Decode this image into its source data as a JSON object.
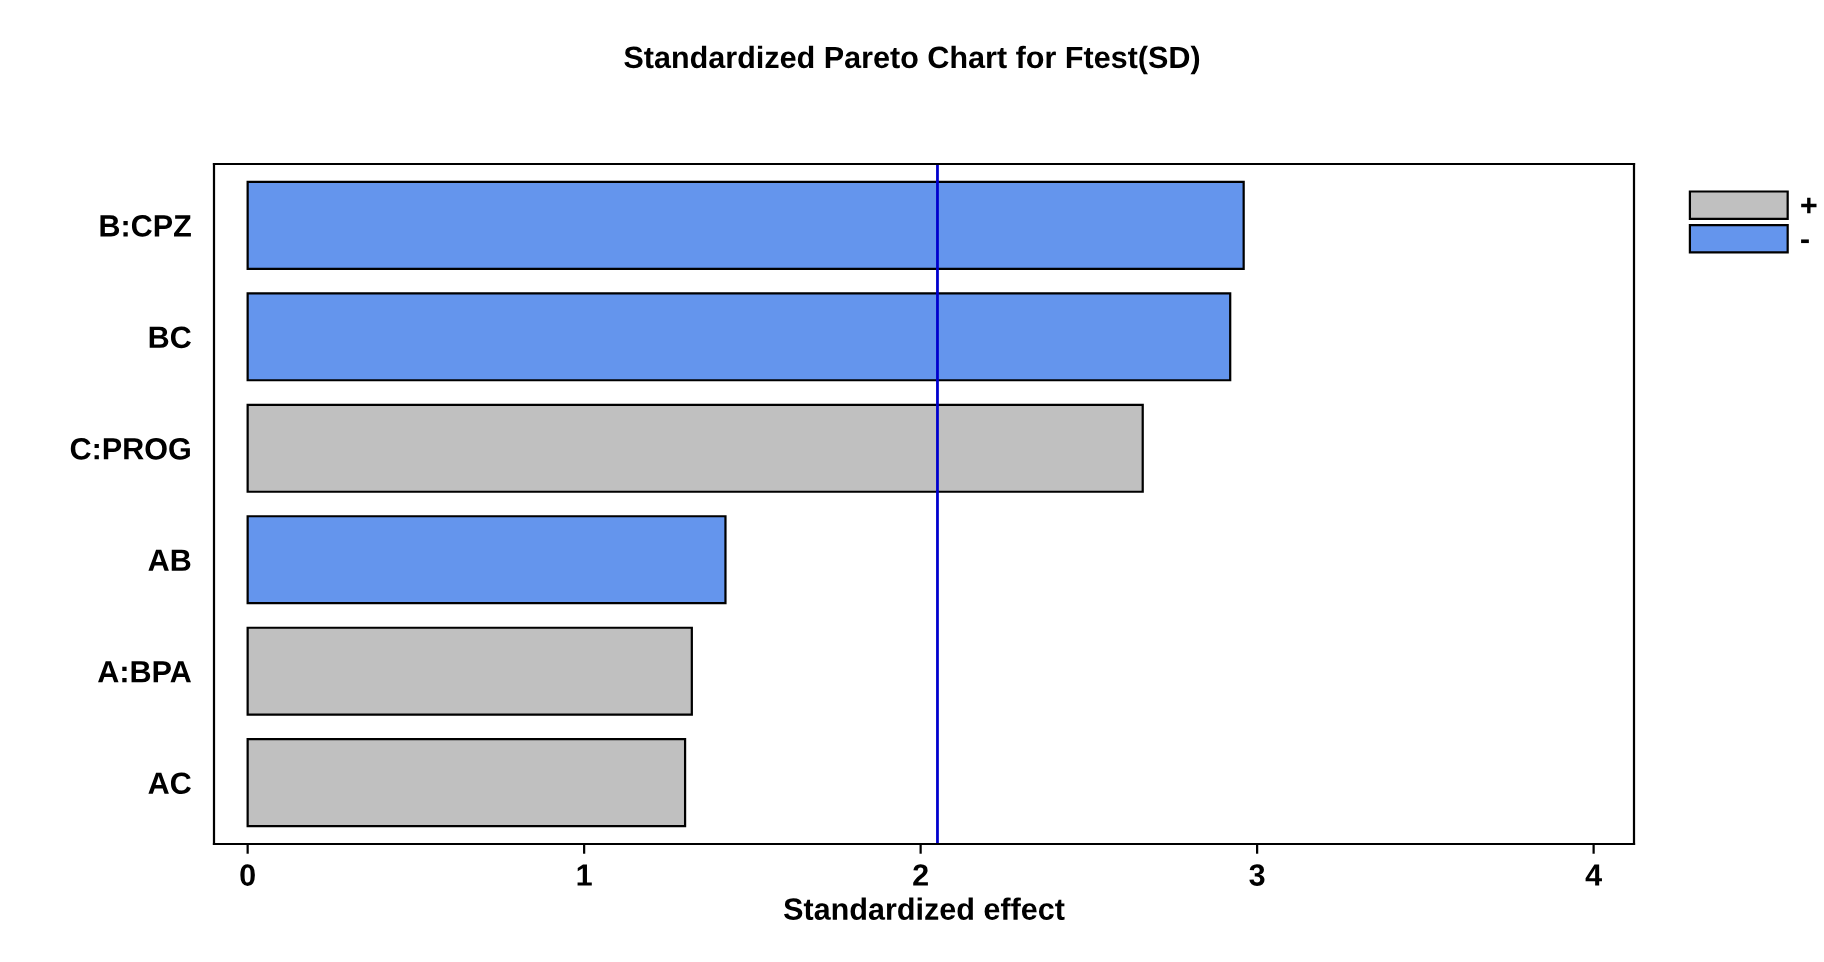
{
  "chart_data": {
    "type": "bar",
    "orientation": "horizontal",
    "title": "Standardized Pareto Chart for Ftest(SD)",
    "xlabel": "Standardized effect",
    "categories": [
      "B:CPZ",
      "BC",
      "C:PROG",
      "AB",
      "A:BPA",
      "AC"
    ],
    "series": [
      {
        "name": "+",
        "color": "#c0c0c0",
        "values": [
          null,
          null,
          2.66,
          null,
          1.32,
          1.3
        ]
      },
      {
        "name": "-",
        "color": "#6495ed",
        "values": [
          2.96,
          2.92,
          null,
          1.42,
          null,
          null
        ]
      }
    ],
    "xlim": [
      -0.1,
      4.12
    ],
    "xticks": [
      0,
      1,
      2,
      3,
      4
    ],
    "ref_lines": [
      {
        "axis": "x",
        "value": 2.05,
        "color": "#0000cd"
      }
    ],
    "grid": false,
    "legend": "top right"
  }
}
